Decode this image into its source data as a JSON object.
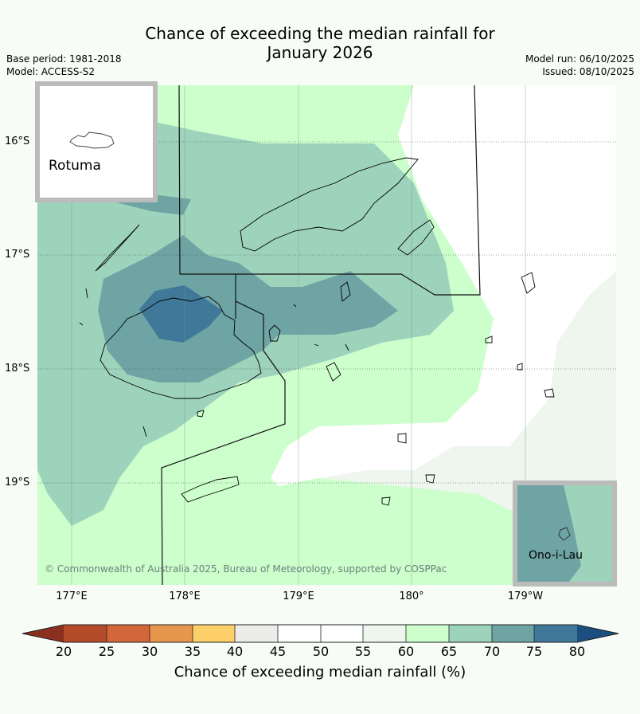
{
  "title_line1": "Chance of exceeding the median rainfall for",
  "title_line2": "January 2026",
  "base_period": "Base period: 1981-2018",
  "model": "Model: ACCESS-S2",
  "model_run": "Model run: 06/10/2025",
  "issued": "Issued: 08/10/2025",
  "lat_labels": [
    "16°S",
    "17°S",
    "18°S",
    "19°S"
  ],
  "lon_labels": [
    "177°E",
    "178°E",
    "179°E",
    "180°",
    "179°W"
  ],
  "inset_rotuma": "Rotuma",
  "inset_onoilau": "Ono-i-Lau",
  "copyright": "© Commonwealth of Australia 2025, Bureau of Meteorology, supported by COSPPac",
  "colorbar": {
    "title": "Chance of exceeding median rainfall (%)",
    "ticks": [
      "20",
      "25",
      "30",
      "35",
      "40",
      "45",
      "50",
      "55",
      "60",
      "65",
      "70",
      "75",
      "80"
    ],
    "colors": {
      "below_20": "#8b2f1e",
      "20_25": "#b34a28",
      "25_30": "#d4673a",
      "30_35": "#e6964d",
      "35_40": "#fdd06a",
      "40_45": "#ececea",
      "45_50": "#ffffff",
      "50_55": "#ffffff",
      "55_60": "#eef6ee",
      "60_65": "#ccffcc",
      "65_70": "#9dd2bb",
      "70_75": "#6fa4a4",
      "75_80": "#3f7899",
      "above_80": "#1c4f7f"
    }
  }
}
